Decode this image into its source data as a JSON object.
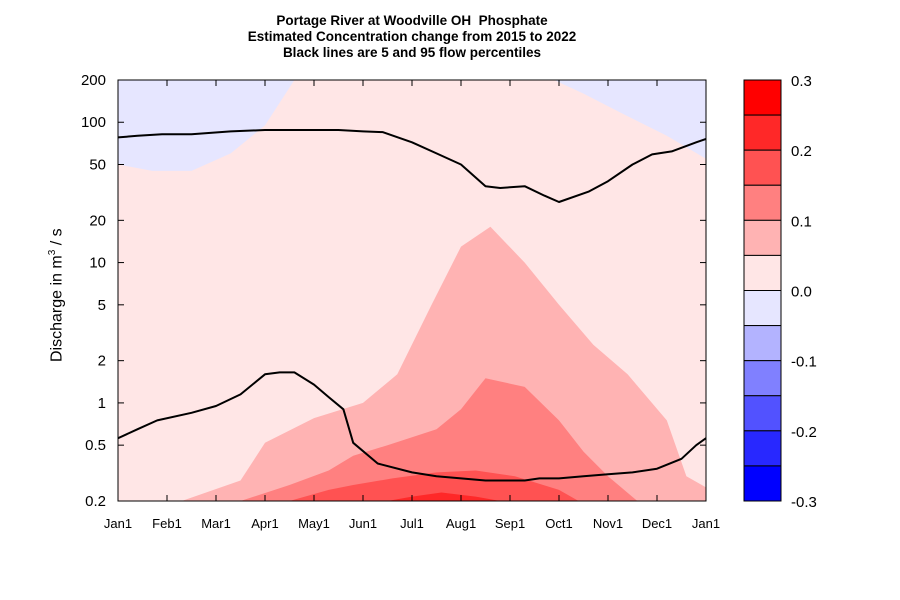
{
  "chart_data": {
    "type": "heatmap",
    "title": "Portage River at Woodville OH  Phosphate",
    "subtitle_lines": [
      "Estimated Concentration change from 2015 to 2022",
      "Black lines are 5 and 95 flow percentiles"
    ],
    "ylabel": {
      "prefix": "Discharge in m",
      "sup": "3",
      "suffix": " / s"
    },
    "y_scale": "log",
    "ylim": [
      0.2,
      200
    ],
    "y_ticks": [
      {
        "value": 200,
        "label": "200"
      },
      {
        "value": 100,
        "label": "100"
      },
      {
        "value": 50,
        "label": "50"
      },
      {
        "value": 20,
        "label": "20"
      },
      {
        "value": 10,
        "label": "10"
      },
      {
        "value": 5,
        "label": "5"
      },
      {
        "value": 2,
        "label": "2"
      },
      {
        "value": 1,
        "label": "1"
      },
      {
        "value": 0.5,
        "label": "0.5"
      },
      {
        "value": 0.2,
        "label": "0.2"
      }
    ],
    "x_range_months": [
      0,
      12
    ],
    "x_ticks": [
      {
        "value": 0,
        "label": "Jan1"
      },
      {
        "value": 1,
        "label": "Feb1"
      },
      {
        "value": 2,
        "label": "Mar1"
      },
      {
        "value": 3,
        "label": "Apr1"
      },
      {
        "value": 4,
        "label": "May1"
      },
      {
        "value": 5,
        "label": "Jun1"
      },
      {
        "value": 6,
        "label": "Jul1"
      },
      {
        "value": 7,
        "label": "Aug1"
      },
      {
        "value": 8,
        "label": "Sep1"
      },
      {
        "value": 9,
        "label": "Oct1"
      },
      {
        "value": 10,
        "label": "Nov1"
      },
      {
        "value": 11,
        "label": "Dec1"
      },
      {
        "value": 12,
        "label": "Jan1"
      }
    ],
    "background_level_color": "#ffe6e6",
    "filled_regions": [
      {
        "level": "0.0 to -0.05",
        "color": "#e6e6ff",
        "points": [
          [
            0,
            50
          ],
          [
            0.7,
            45
          ],
          [
            1.5,
            45
          ],
          [
            2.3,
            60
          ],
          [
            3,
            95
          ],
          [
            3.6,
            200
          ],
          [
            0,
            200
          ]
        ]
      },
      {
        "level": "0.0 to -0.05",
        "color": "#e6e6ff",
        "points": [
          [
            8.9,
            200
          ],
          [
            9.5,
            160
          ],
          [
            10.3,
            115
          ],
          [
            11.2,
            80
          ],
          [
            12,
            55
          ],
          [
            12,
            200
          ]
        ]
      },
      {
        "level": "0.05 to 0.1",
        "color": "#ffb3b3",
        "points": [
          [
            1.3,
            0.2
          ],
          [
            2.5,
            0.28
          ],
          [
            3,
            0.52
          ],
          [
            4,
            0.78
          ],
          [
            5,
            1
          ],
          [
            5.7,
            1.6
          ],
          [
            6.4,
            5
          ],
          [
            7,
            13
          ],
          [
            7.6,
            18
          ],
          [
            8.3,
            10
          ],
          [
            9,
            5
          ],
          [
            9.7,
            2.6
          ],
          [
            10.4,
            1.6
          ],
          [
            11.2,
            0.75
          ],
          [
            11.6,
            0.3
          ],
          [
            12,
            0.25
          ],
          [
            12,
            0.2
          ]
        ]
      },
      {
        "level": "0.1 to 0.15",
        "color": "#ff8080",
        "points": [
          [
            2.5,
            0.2
          ],
          [
            3.5,
            0.26
          ],
          [
            4.3,
            0.33
          ],
          [
            4.8,
            0.42
          ],
          [
            5.5,
            0.5
          ],
          [
            6.5,
            0.65
          ],
          [
            7,
            0.9
          ],
          [
            7.5,
            1.5
          ],
          [
            8.3,
            1.3
          ],
          [
            9,
            0.75
          ],
          [
            9.5,
            0.45
          ],
          [
            10,
            0.3
          ],
          [
            10.6,
            0.2
          ]
        ]
      },
      {
        "level": "0.15 to 0.2",
        "color": "#ff5252",
        "points": [
          [
            3.5,
            0.2
          ],
          [
            4.3,
            0.24
          ],
          [
            4.8,
            0.26
          ],
          [
            5.6,
            0.29
          ],
          [
            6.5,
            0.32
          ],
          [
            7.3,
            0.33
          ],
          [
            8.1,
            0.3
          ],
          [
            9,
            0.24
          ],
          [
            9.4,
            0.2
          ]
        ]
      },
      {
        "level": "0.2 to 0.25",
        "color": "#ff2828",
        "points": [
          [
            5.5,
            0.2
          ],
          [
            6,
            0.215
          ],
          [
            6.6,
            0.23
          ],
          [
            7.3,
            0.215
          ],
          [
            7.8,
            0.2
          ]
        ]
      }
    ],
    "percentile_lines": [
      {
        "name": "95 flow percentile",
        "points": [
          [
            0,
            78
          ],
          [
            0.4,
            80
          ],
          [
            0.9,
            82
          ],
          [
            1.5,
            82
          ],
          [
            2.3,
            86
          ],
          [
            3,
            88
          ],
          [
            4,
            88
          ],
          [
            4.5,
            88
          ],
          [
            5,
            86
          ],
          [
            5.4,
            85
          ],
          [
            6,
            72
          ],
          [
            6.5,
            60
          ],
          [
            7,
            50
          ],
          [
            7.5,
            35
          ],
          [
            7.8,
            34
          ],
          [
            8.3,
            35
          ],
          [
            8.7,
            30
          ],
          [
            9,
            27
          ],
          [
            9.6,
            32
          ],
          [
            10,
            38
          ],
          [
            10.5,
            50
          ],
          [
            10.9,
            59
          ],
          [
            11.3,
            62
          ],
          [
            11.8,
            72
          ],
          [
            12,
            76
          ]
        ]
      },
      {
        "name": "5 flow percentile",
        "points": [
          [
            0,
            0.56
          ],
          [
            0.4,
            0.65
          ],
          [
            0.8,
            0.75
          ],
          [
            1.5,
            0.85
          ],
          [
            2,
            0.95
          ],
          [
            2.5,
            1.15
          ],
          [
            3,
            1.6
          ],
          [
            3.3,
            1.65
          ],
          [
            3.6,
            1.65
          ],
          [
            4,
            1.35
          ],
          [
            4.3,
            1.1
          ],
          [
            4.6,
            0.9
          ],
          [
            4.8,
            0.52
          ],
          [
            5.3,
            0.37
          ],
          [
            6,
            0.32
          ],
          [
            6.5,
            0.3
          ],
          [
            7,
            0.29
          ],
          [
            7.5,
            0.28
          ],
          [
            8,
            0.28
          ],
          [
            8.3,
            0.28
          ],
          [
            8.6,
            0.29
          ],
          [
            9,
            0.29
          ],
          [
            9.5,
            0.3
          ],
          [
            10,
            0.31
          ],
          [
            10.5,
            0.32
          ],
          [
            11,
            0.34
          ],
          [
            11.5,
            0.4
          ],
          [
            11.8,
            0.5
          ],
          [
            12,
            0.56
          ]
        ]
      }
    ],
    "colorbar": {
      "ticks": [
        {
          "value": 0.3,
          "label": "0.3"
        },
        {
          "value": 0.2,
          "label": "0.2"
        },
        {
          "value": 0.1,
          "label": "0.1"
        },
        {
          "value": 0.0,
          "label": "0.0"
        },
        {
          "value": -0.1,
          "label": "-0.1"
        },
        {
          "value": -0.2,
          "label": "-0.2"
        },
        {
          "value": -0.3,
          "label": "-0.3"
        }
      ],
      "bands": [
        {
          "from": 0.25,
          "to": 0.3,
          "color": "#ff0000"
        },
        {
          "from": 0.2,
          "to": 0.25,
          "color": "#ff2828"
        },
        {
          "from": 0.15,
          "to": 0.2,
          "color": "#ff5252"
        },
        {
          "from": 0.1,
          "to": 0.15,
          "color": "#ff8080"
        },
        {
          "from": 0.05,
          "to": 0.1,
          "color": "#ffb3b3"
        },
        {
          "from": 0.0,
          "to": 0.05,
          "color": "#ffe6e6"
        },
        {
          "from": -0.05,
          "to": 0.0,
          "color": "#e6e6ff"
        },
        {
          "from": -0.1,
          "to": -0.05,
          "color": "#b3b3ff"
        },
        {
          "from": -0.15,
          "to": -0.1,
          "color": "#8080ff"
        },
        {
          "from": -0.2,
          "to": -0.15,
          "color": "#5252ff"
        },
        {
          "from": -0.25,
          "to": -0.2,
          "color": "#2828ff"
        },
        {
          "from": -0.3,
          "to": -0.25,
          "color": "#0000ff"
        }
      ]
    }
  }
}
